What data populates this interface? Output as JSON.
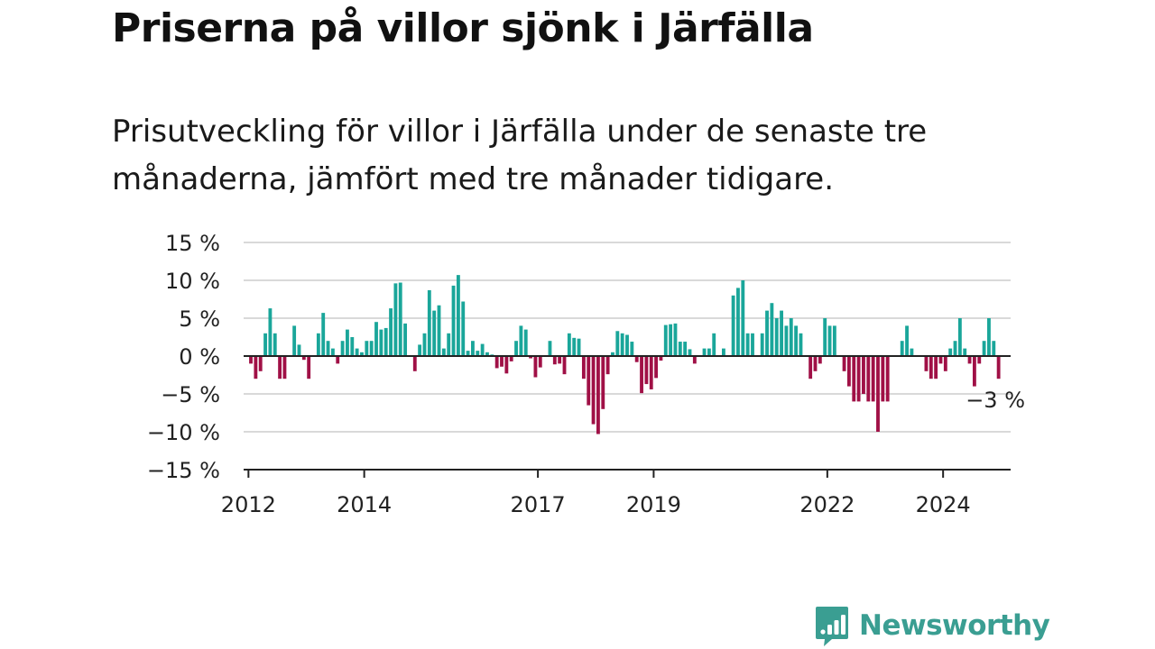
{
  "title": "Priserna på villor sjönk i Järfälla",
  "subtitle": "Prisutveckling för villor i Järfälla under de senaste tre månaderna, jämfört med tre månader tidigare.",
  "brand": {
    "name": "Newsworthy",
    "icon": "bar-chart-badge-icon"
  },
  "colors": {
    "positive": "#1aa69a",
    "negative": "#a01046",
    "grid": "#d9d9d9",
    "axis": "#222222",
    "brand": "#3a9e92"
  },
  "chart_data": {
    "type": "bar",
    "x_start": "2011-12",
    "x_end": "2025-03",
    "xticks": [
      {
        "label": "2012",
        "month": "2012-01"
      },
      {
        "label": "2014",
        "month": "2014-01"
      },
      {
        "label": "2017",
        "month": "2017-01"
      },
      {
        "label": "2019",
        "month": "2019-01"
      },
      {
        "label": "2022",
        "month": "2022-01"
      },
      {
        "label": "2024",
        "month": "2024-01"
      }
    ],
    "yticks": [
      {
        "value": 15,
        "label": "15 %"
      },
      {
        "value": 10,
        "label": "10 %"
      },
      {
        "value": 5,
        "label": "5 %"
      },
      {
        "value": 0,
        "label": "0 %"
      },
      {
        "value": -5,
        "label": "−5 %"
      },
      {
        "value": -10,
        "label": "−10 %"
      },
      {
        "value": -15,
        "label": "−15 %"
      }
    ],
    "ylim": [
      -15,
      15
    ],
    "grid": true,
    "annotation": {
      "text": "−3 %",
      "month": "2024-12"
    },
    "series": [
      {
        "start": "2012-01",
        "values": [
          -1,
          -3,
          -2,
          3,
          6.3,
          3,
          -3,
          -3,
          0,
          4,
          1.5,
          -0.5,
          -3,
          0,
          3,
          5.7,
          2,
          1,
          -1,
          2,
          3.5,
          2.5,
          1,
          0.5,
          2,
          2,
          4.5,
          3.5,
          3.7,
          6.3,
          9.6,
          9.7,
          4.3,
          0,
          -2,
          1.5,
          3,
          8.7,
          6,
          6.7,
          1,
          3,
          9.3,
          10.7,
          7.2,
          0.7,
          2,
          0.7,
          1.6,
          0.5,
          0.2,
          -1.6,
          -1.4,
          -2.3,
          -0.7,
          2,
          4,
          3.5,
          -0.3,
          -2.8,
          -1.5,
          0,
          2,
          -1.1,
          -1,
          -2.4,
          3,
          2.4,
          2.3,
          -3,
          -6.5,
          -9,
          -10.3,
          -7,
          -2.4,
          0.5,
          3.3,
          3,
          2.8,
          1.9,
          -0.8,
          -4.9,
          -3.7,
          -4.4,
          -2.9,
          -0.6,
          4.1,
          4.2,
          4.3,
          1.9,
          1.9,
          0.9,
          -1,
          0,
          1,
          1,
          3,
          0,
          1,
          0,
          8,
          9,
          10,
          3,
          3,
          0,
          3,
          6,
          7,
          5,
          6,
          4,
          5,
          4,
          3,
          0,
          -3,
          -2,
          -1,
          5,
          4,
          4,
          0,
          -2,
          -4,
          -6,
          -6,
          -5,
          -6,
          -6,
          -10,
          -6,
          -6,
          0,
          0,
          2,
          4,
          1,
          0,
          0,
          -2,
          -3,
          -3,
          -1,
          -2,
          1,
          2,
          5,
          1,
          -1,
          -4,
          -1,
          2,
          5,
          2,
          -3
        ]
      }
    ]
  }
}
